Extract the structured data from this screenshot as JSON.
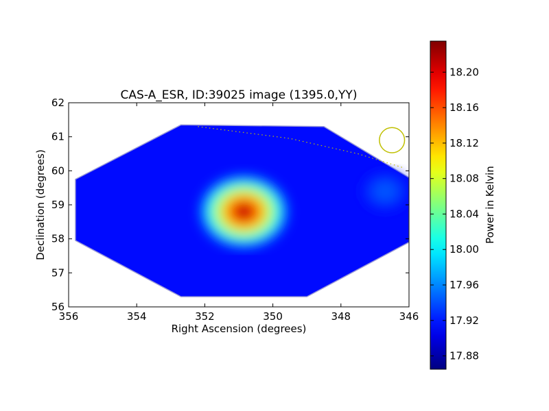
{
  "chart_data": {
    "type": "heatmap",
    "title": "CAS-A_ESR, ID:39025 image (1395.0,YY)",
    "xlabel": "Right Ascension (degrees)",
    "ylabel": "Declination (degrees)",
    "xlim": [
      356,
      346
    ],
    "ylim": [
      56,
      62
    ],
    "x_ticks": [
      "356",
      "354",
      "352",
      "350",
      "348",
      "346"
    ],
    "y_ticks": [
      "56",
      "57",
      "58",
      "59",
      "60",
      "61",
      "62"
    ],
    "colorbar": {
      "label": "Power in Kelvin",
      "range": [
        17.865,
        18.235
      ],
      "ticks": [
        "17.88",
        "17.92",
        "17.96",
        "18.00",
        "18.04",
        "18.08",
        "18.12",
        "18.16",
        "18.20"
      ],
      "colormap": "jet"
    },
    "background_level": 17.915,
    "footprint_polygon": [
      [
        355.8,
        57.95
      ],
      [
        352.7,
        56.3
      ],
      [
        349.0,
        56.3
      ],
      [
        346.0,
        57.9
      ],
      [
        346.0,
        59.8
      ],
      [
        348.5,
        61.3
      ],
      [
        352.7,
        61.35
      ],
      [
        355.8,
        59.75
      ]
    ],
    "sources": [
      {
        "ra": 350.85,
        "dec": 58.8,
        "peak": 18.235
      },
      {
        "ra": 346.7,
        "dec": 59.4,
        "peak": 17.945
      }
    ],
    "beam_circle": {
      "ra": 346.5,
      "dec": 60.9,
      "radius_deg": 0.37,
      "color": "#bfbf00"
    },
    "dotted_track": [
      [
        352.2,
        61.3
      ],
      [
        349.5,
        60.95
      ],
      [
        347.5,
        60.5
      ],
      [
        346.2,
        60.1
      ]
    ]
  }
}
